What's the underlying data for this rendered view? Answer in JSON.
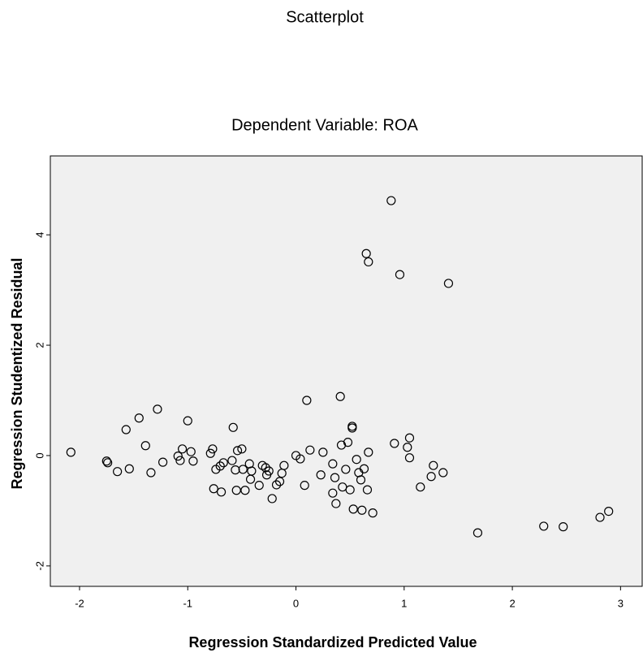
{
  "chart_data": {
    "type": "scatter",
    "title": "Scatterplot",
    "subtitle": "Dependent Variable: ROA",
    "x_label": "Regression Standardized Predicted Value",
    "y_label": "Regression Studentized Residual",
    "x": [
      -2.08,
      -1.75,
      -1.74,
      -1.65,
      -1.57,
      -1.54,
      -1.45,
      -1.39,
      -1.34,
      -1.28,
      -1.23,
      -1.09,
      -1.07,
      -1.05,
      -1.0,
      -0.97,
      -0.95,
      -0.79,
      -0.77,
      -0.76,
      -0.74,
      -0.69,
      -0.7,
      -0.67,
      -0.59,
      -0.58,
      -0.56,
      -0.55,
      -0.54,
      -0.5,
      -0.49,
      -0.47,
      -0.43,
      -0.42,
      -0.41,
      -0.34,
      -0.31,
      -0.28,
      -0.27,
      -0.25,
      -0.22,
      -0.18,
      -0.15,
      -0.13,
      -0.11,
      0,
      0.04,
      0.08,
      0.1,
      0.13,
      0.23,
      0.25,
      0.34,
      0.34,
      0.36,
      0.37,
      0.41,
      0.42,
      0.43,
      0.46,
      0.48,
      0.5,
      0.52,
      0.52,
      0.53,
      0.56,
      0.58,
      0.6,
      0.61,
      0.63,
      0.65,
      0.67,
      0.66,
      0.67,
      0.71,
      0.88,
      0.91,
      0.96,
      1.03,
      1.05,
      1.05,
      1.15,
      1.25,
      1.27,
      1.36,
      1.41,
      1.68,
      2.29,
      2.47,
      2.81,
      2.89
    ],
    "y": [
      0.06,
      -0.1,
      -0.13,
      -0.29,
      0.47,
      -0.24,
      0.68,
      0.18,
      -0.31,
      0.84,
      -0.12,
      -0.01,
      -0.09,
      0.12,
      0.63,
      0.07,
      -0.1,
      0.04,
      0.12,
      -0.6,
      -0.25,
      -0.66,
      -0.19,
      -0.13,
      -0.09,
      0.51,
      -0.26,
      -0.63,
      0.09,
      0.12,
      -0.25,
      -0.63,
      -0.15,
      -0.43,
      -0.28,
      -0.54,
      -0.18,
      -0.22,
      -0.35,
      -0.28,
      -0.78,
      -0.53,
      -0.47,
      -0.32,
      -0.18,
      0,
      -0.06,
      -0.54,
      1.0,
      0.1,
      -0.35,
      0.06,
      -0.15,
      -0.68,
      -0.4,
      -0.87,
      1.07,
      0.19,
      -0.57,
      -0.25,
      0.24,
      -0.62,
      0.5,
      0.53,
      -0.97,
      -0.07,
      -0.31,
      -0.44,
      -0.99,
      -0.24,
      3.66,
      3.51,
      -0.62,
      0.06,
      -1.04,
      4.62,
      0.22,
      3.28,
      0.15,
      -0.04,
      0.32,
      -0.57,
      -0.38,
      -0.18,
      -0.31,
      3.12,
      -1.4,
      -1.28,
      -1.29,
      -1.12,
      -1.01
    ],
    "color": "#000000",
    "background": "#f0f0f0",
    "xlim": [
      -2.27,
      3.2
    ],
    "xticks": [
      -2,
      -1,
      0,
      1,
      2,
      3
    ],
    "ylim": [
      -2.37,
      5.43
    ],
    "yticks": [
      -2,
      0,
      2,
      4
    ]
  }
}
